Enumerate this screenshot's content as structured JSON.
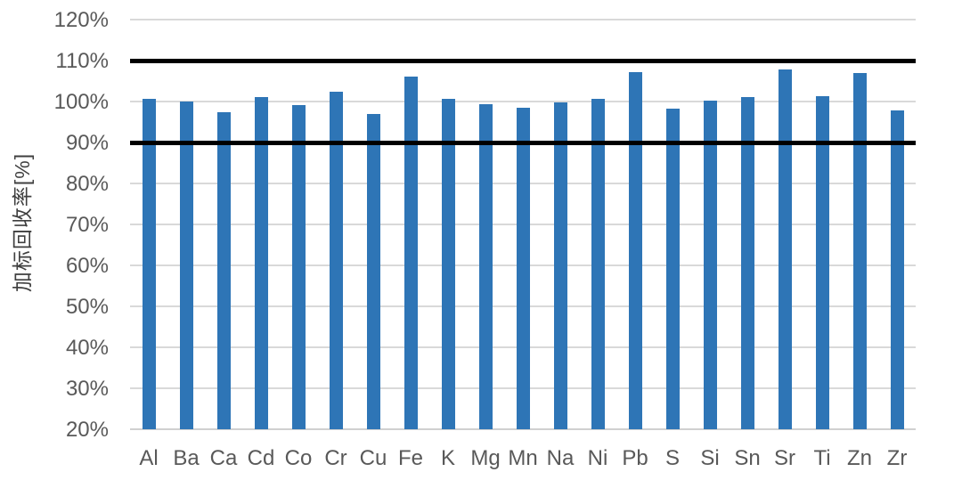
{
  "chart_data": {
    "type": "bar",
    "title": "",
    "xlabel": "",
    "ylabel": "加标回收率[%]",
    "unit": "%",
    "categories": [
      "Al",
      "Ba",
      "Ca",
      "Cd",
      "Co",
      "Cr",
      "Cu",
      "Fe",
      "K",
      "Mg",
      "Mn",
      "Na",
      "Ni",
      "Pb",
      "S",
      "Si",
      "Sn",
      "Sr",
      "Ti",
      "Zn",
      "Zr"
    ],
    "values": [
      100.7,
      100.0,
      97.3,
      101.1,
      99.1,
      102.4,
      96.9,
      106.0,
      100.7,
      99.3,
      98.5,
      99.7,
      100.7,
      107.1,
      98.3,
      100.3,
      101.1,
      107.8,
      101.3,
      107.0,
      97.8
    ],
    "ylim": [
      20,
      120
    ],
    "ytick_step": 10,
    "ytick_labels": [
      "120%",
      "110%",
      "100%",
      "90%",
      "80%",
      "70%",
      "60%",
      "50%",
      "40%",
      "30%",
      "20%"
    ],
    "grid": "horizontal",
    "legend_position": "none",
    "reference_lines": [
      {
        "name": "upper-limit",
        "value": 110
      },
      {
        "name": "lower-limit",
        "value": 90
      }
    ],
    "colors": {
      "bar": "#2e75b6",
      "gridline": "#d9d9d9",
      "bottom_axis": "#d0d0d0",
      "reference_line": "#000000",
      "tick_label": "#595959",
      "axis_title": "#3f3f3f",
      "background": "#ffffff"
    }
  }
}
